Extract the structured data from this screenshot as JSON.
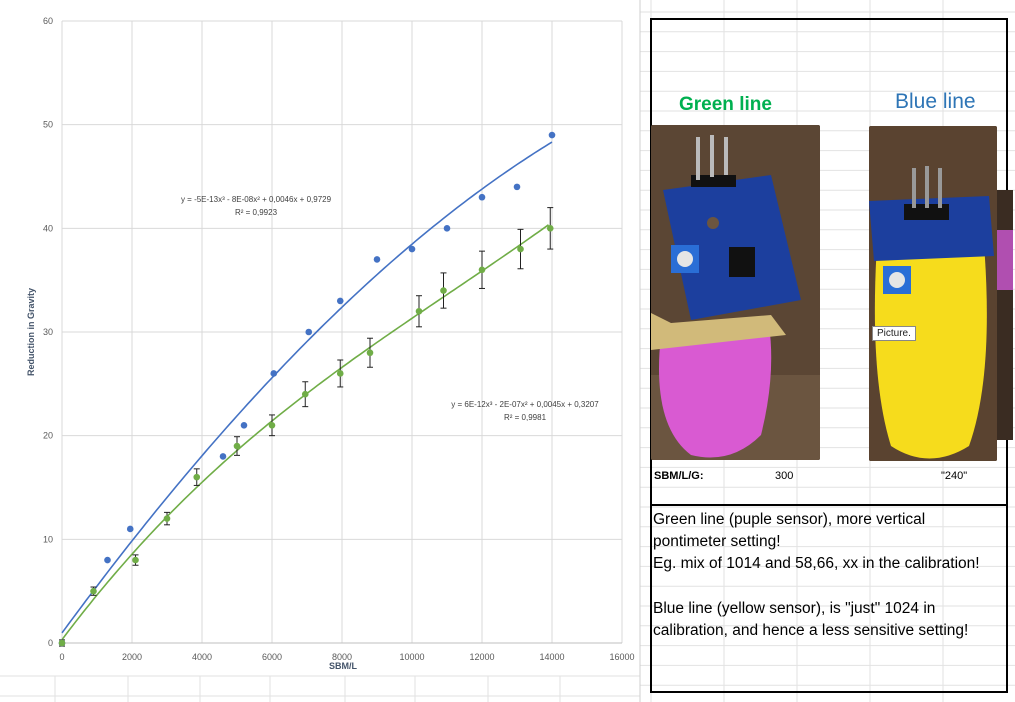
{
  "chart_data": {
    "type": "scatter",
    "xlabel": "SBM/L",
    "ylabel": "Reduction in Gravity",
    "xlim": [
      0,
      16000
    ],
    "ylim": [
      0,
      60
    ],
    "xticks": [
      0,
      2000,
      4000,
      6000,
      8000,
      10000,
      12000,
      14000,
      16000
    ],
    "yticks": [
      0,
      10,
      20,
      30,
      40,
      50,
      60
    ],
    "grid": true,
    "series": [
      {
        "color": "#4472c4",
        "points": [
          [
            0,
            0
          ],
          [
            1300,
            8
          ],
          [
            1950,
            11
          ],
          [
            4600,
            18
          ],
          [
            5200,
            21
          ],
          [
            6050,
            26
          ],
          [
            7050,
            30
          ],
          [
            7950,
            33
          ],
          [
            9000,
            37
          ],
          [
            10000,
            38
          ],
          [
            11000,
            40
          ],
          [
            12000,
            43
          ],
          [
            13000,
            44
          ],
          [
            14000,
            49
          ]
        ],
        "trendline": {
          "type": "poly3",
          "coef": [
            -5e-13,
            -8e-08,
            0.0046,
            0.9729
          ],
          "equation": "y = -5E-13x³ - 8E-08x² + 0,0046x + 0,9729",
          "r2": "R² = 0,9923"
        }
      },
      {
        "color": "#70ad47",
        "points": [
          [
            0,
            0
          ],
          [
            900,
            5
          ],
          [
            2100,
            8
          ],
          [
            3000,
            12
          ],
          [
            3850,
            16
          ],
          [
            5000,
            19
          ],
          [
            6000,
            21
          ],
          [
            6950,
            24
          ],
          [
            7950,
            26
          ],
          [
            8800,
            28
          ],
          [
            10200,
            32
          ],
          [
            10900,
            34
          ],
          [
            12000,
            36
          ],
          [
            13100,
            38
          ],
          [
            13950,
            40
          ]
        ],
        "error": [
          0.3,
          0.4,
          0.5,
          0.6,
          0.8,
          0.9,
          1,
          1.2,
          1.3,
          1.4,
          1.5,
          1.7,
          1.8,
          1.9,
          2
        ],
        "trendline": {
          "type": "poly3",
          "coef": [
            6e-12,
            -2e-07,
            0.0045,
            0.3207
          ],
          "equation": "y = 6E-12x³ - 2E-07x² + 0,0045x + 0,3207",
          "r2": "R² = 0,9981"
        }
      }
    ]
  },
  "panel": {
    "green_label": "Green line",
    "blue_label": "Blue line",
    "tooltip": "Picture.",
    "sbm_label": "SBM/L/G:",
    "sbm_green": "300",
    "sbm_blue": "\"240\"",
    "notes": [
      "Green line (puple sensor), more vertical",
      "pontimeter setting!",
      "Eg. mix of 1014 and 58,66, xx in the calibration!",
      "",
      "Blue line (yellow sensor), is \"just\" 1024 in",
      "calibration, and hence a less sensitive setting!"
    ]
  }
}
